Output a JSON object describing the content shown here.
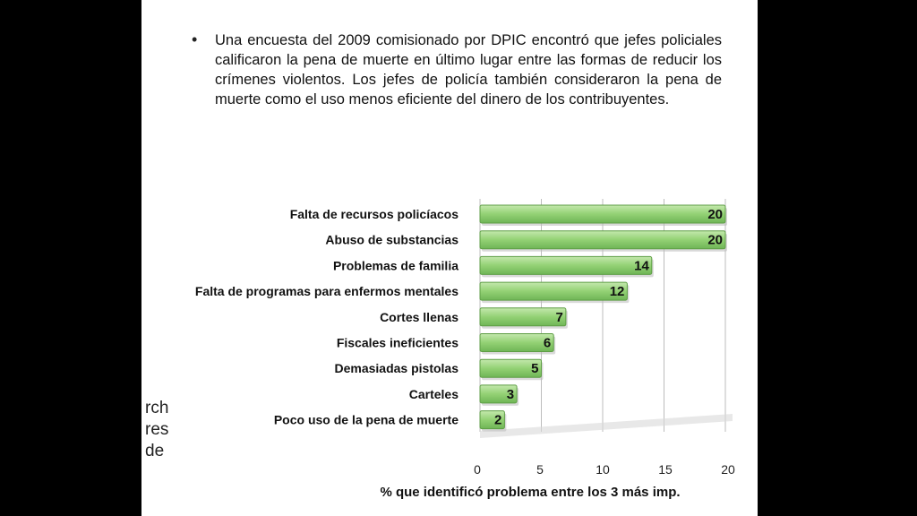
{
  "slide": {
    "bullet": "Una encuesta del 2009 comisionado por DPIC encontró que jefes policiales calificaron la pena de muerte en último lugar entre las formas de reducir los crímenes violentos. Los jefes de policía también consideraron la pena de muerte como el uso menos eficiente del dinero de los contribuyentes.",
    "residual_text": [
      "rch",
      "res",
      "de"
    ]
  },
  "chart_data": {
    "type": "bar",
    "orientation": "horizontal",
    "categories": [
      "Falta de recursos policíacos",
      "Abuso de substancias",
      "Problemas de familia",
      "Falta de programas para enfermos mentales",
      "Cortes llenas",
      "Fiscales ineficientes",
      "Demasiadas pistolas",
      "Carteles",
      "Poco uso de la pena de muerte"
    ],
    "values": [
      20,
      20,
      14,
      12,
      7,
      6,
      5,
      3,
      2
    ],
    "value_labels": [
      "20",
      "20",
      "14",
      "12",
      "7",
      "6",
      "5",
      "3",
      "2"
    ],
    "xlabel": "% que identificó problema entre los 3 más imp.",
    "xticks": [
      "0",
      "5",
      "10",
      "15",
      "20"
    ],
    "xlim": [
      0,
      20
    ],
    "grid": true,
    "bar_color": "#8fce72",
    "bar_edge": "#5e9e45"
  }
}
